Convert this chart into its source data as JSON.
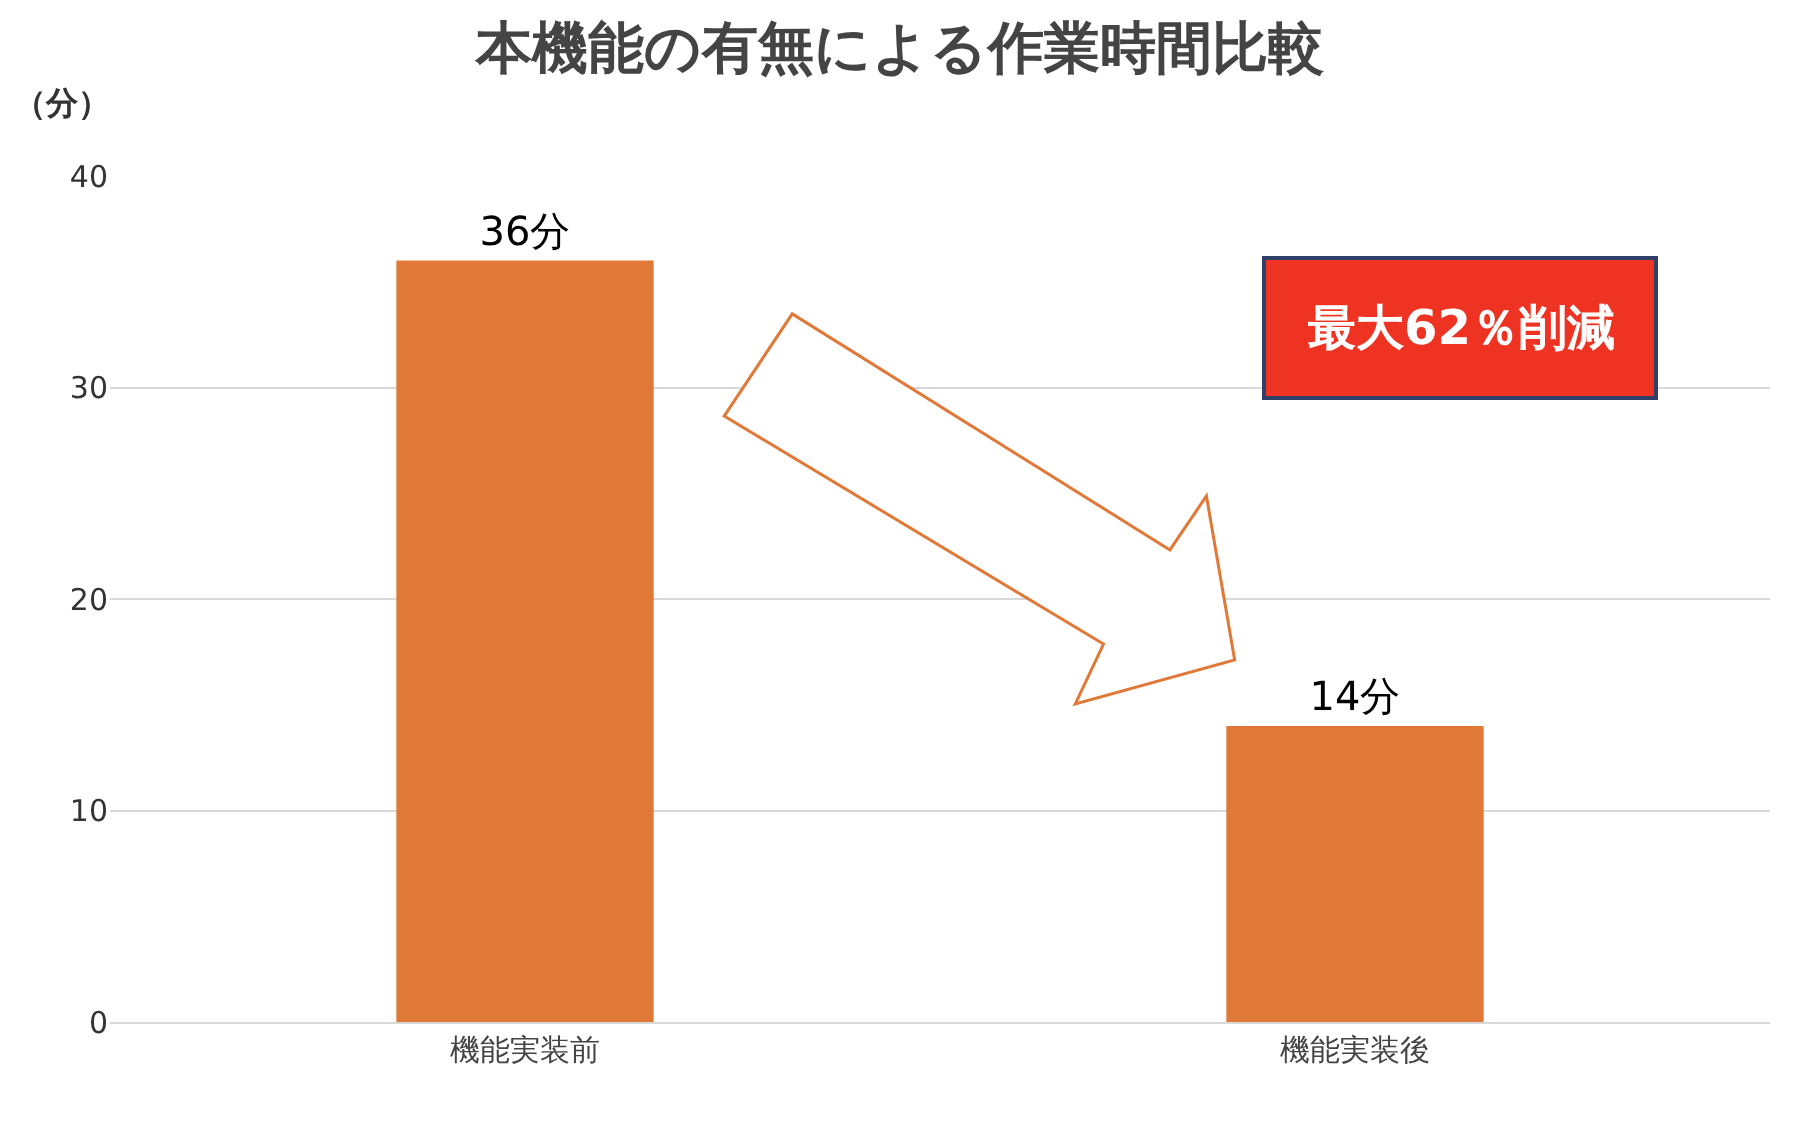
{
  "chart_data": {
    "type": "bar",
    "title": "本機能の有無による作業時間比較",
    "ylabel": "（分）",
    "categories": [
      "機能実装前",
      "機能実装後"
    ],
    "values": [
      36,
      14
    ],
    "color": "#e07838",
    "value_labels": [
      "36分",
      "14分"
    ],
    "ylim": [
      0,
      40
    ],
    "yticks": [
      0,
      10,
      20,
      30,
      40
    ],
    "grid": "y",
    "annotations": [
      "最大62％削減"
    ]
  }
}
